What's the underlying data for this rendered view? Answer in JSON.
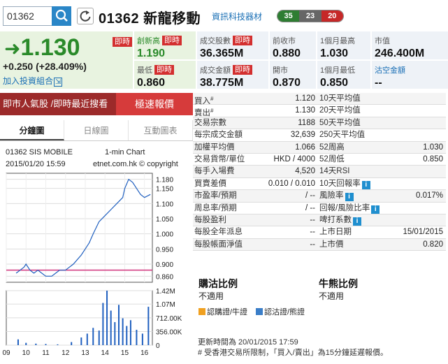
{
  "header": {
    "code_value": "01362",
    "title": "01362 新龍移動",
    "industry": "資訊科技器材",
    "counts": [
      "35",
      "23",
      "20"
    ]
  },
  "quote": {
    "price": "1.130",
    "change": "+0.250",
    "change_pct": "(+28.409%)",
    "high_tag": "即時",
    "portfolio_link": "加入投資組合",
    "cells": [
      {
        "label": "創新高",
        "tag": "即時",
        "value": "1.190"
      },
      {
        "label": "最低",
        "tag": "即時",
        "value": "0.860"
      },
      {
        "label": "成交股數",
        "tag": "即時",
        "value": "36.365M"
      },
      {
        "label": "成交金額",
        "tag": "即時",
        "value": "38.775M"
      },
      {
        "label": "前收市",
        "value": "0.880"
      },
      {
        "label": "開市",
        "value": "0.870"
      },
      {
        "label": "1個月最高",
        "value": "1.030"
      },
      {
        "label": "1個月最低",
        "value": "0.850"
      },
      {
        "label": "市值",
        "value": "246.400M"
      },
      {
        "label": "沽空金額",
        "value": "--"
      }
    ]
  },
  "left": {
    "market_bar": "即市人氣股 /即時最近搜看 ◀",
    "realtime_button": "極速報價",
    "tabs": [
      "分鐘圖",
      "日線圖",
      "互動圖表"
    ],
    "chart_title_left": "01362 SIS MOBILE",
    "chart_title_right": "1-min Chart",
    "chart_date": "2015/01/20 15:59",
    "chart_copyright": "etnet.com.hk © copyright"
  },
  "table": {
    "rows": [
      {
        "l1": "買入",
        "sup1": "#",
        "v1": "1.120",
        "l2": "10天平均值",
        "v2": ""
      },
      {
        "l1": "賣出",
        "sup1": "#",
        "v1": "1.130",
        "l2": "20天平均值",
        "v2": ""
      },
      {
        "l1": "交易宗數",
        "v1": "1188",
        "l2": "50天平均值",
        "v2": ""
      },
      {
        "l1": "每宗成交金額",
        "v1": "32,639",
        "l2": "250天平均值",
        "v2": ""
      },
      {
        "l1": "加權平均價",
        "v1": "1.066",
        "l2": "52周高",
        "v2": "1.030"
      },
      {
        "l1": "交易貨幣/單位",
        "v1": "HKD / 4000",
        "l2": "52周低",
        "v2": "0.850"
      },
      {
        "l1": "每手入場費",
        "v1": "4,520",
        "l2": "14天RSI",
        "v2": ""
      },
      {
        "l1": "買賣差價",
        "v1": "0.010 / 0.010",
        "l2": "10天回報率",
        "info2": "i",
        "v2": ""
      },
      {
        "l1": "市盈率/預期",
        "v1": "/ --",
        "l2": "風險率",
        "info2": "i",
        "v2": "0.017%"
      },
      {
        "l1": "周息率/預期",
        "v1": "/ --",
        "l2": "回報/風險比率",
        "info2": "i",
        "v2": ""
      },
      {
        "l1": "每股盈利",
        "v1": "--",
        "l2": "啤打系數",
        "info2": "i",
        "v2": ""
      },
      {
        "l1": "每股全年派息",
        "v1": "--",
        "l2": "上市日期",
        "v2": "15/01/2015"
      },
      {
        "l1": "每股帳面淨值",
        "v1": "--",
        "l2": "上市價",
        "v2": "0.820"
      }
    ]
  },
  "cbbc": {
    "warrant_title": "購沽比例",
    "warrant_value": "不適用",
    "cbbc_title": "牛熊比例",
    "cbbc_value": "不適用",
    "legend_call": "認購證/牛證",
    "legend_put": "認沽證/熊證",
    "color_call": "#f0a020",
    "color_put": "#3a7ec8"
  },
  "footer": {
    "update_time": "更新時間為 20/01/2015 17:59",
    "note": "# 受香港交易所限制，「買入/賣出」為15分鐘延遲報價。"
  },
  "chart_data": {
    "type": "line",
    "x_ticks": [
      "09",
      "10",
      "11",
      "12",
      "13",
      "14",
      "15",
      "16"
    ],
    "price_ticks": [
      "1.180",
      "1.150",
      "1.100",
      "1.050",
      "1.000",
      "0.950",
      "0.900",
      "0.860"
    ],
    "price_tick_values": [
      1.18,
      1.15,
      1.1,
      1.05,
      1.0,
      0.95,
      0.9,
      0.86
    ],
    "volume_ticks": [
      "1.42M",
      "1.07M",
      "712.00K",
      "356.00K",
      "0"
    ],
    "volume_tick_values": [
      1420000,
      1070000,
      712000,
      356000,
      0
    ],
    "ylim": [
      0.84,
      1.2
    ],
    "prev_close": 0.88,
    "price_series": [
      {
        "t": 9.5,
        "v": 0.87
      },
      {
        "t": 9.7,
        "v": 0.88
      },
      {
        "t": 9.9,
        "v": 0.89
      },
      {
        "t": 10.0,
        "v": 0.9
      },
      {
        "t": 10.2,
        "v": 0.88
      },
      {
        "t": 10.4,
        "v": 0.87
      },
      {
        "t": 10.6,
        "v": 0.88
      },
      {
        "t": 10.8,
        "v": 0.87
      },
      {
        "t": 11.0,
        "v": 0.86
      },
      {
        "t": 11.3,
        "v": 0.86
      },
      {
        "t": 11.5,
        "v": 0.87
      },
      {
        "t": 11.7,
        "v": 0.88
      },
      {
        "t": 12.0,
        "v": 0.88
      },
      {
        "t": 12.4,
        "v": 0.9
      },
      {
        "t": 12.8,
        "v": 0.93
      },
      {
        "t": 13.0,
        "v": 0.95
      },
      {
        "t": 13.2,
        "v": 0.97
      },
      {
        "t": 13.4,
        "v": 1.0
      },
      {
        "t": 13.7,
        "v": 1.04
      },
      {
        "t": 14.0,
        "v": 1.06
      },
      {
        "t": 14.3,
        "v": 1.08
      },
      {
        "t": 14.6,
        "v": 1.1
      },
      {
        "t": 14.9,
        "v": 1.12
      },
      {
        "t": 15.0,
        "v": 1.15
      },
      {
        "t": 15.2,
        "v": 1.18
      },
      {
        "t": 15.4,
        "v": 1.17
      },
      {
        "t": 15.6,
        "v": 1.15
      },
      {
        "t": 15.8,
        "v": 1.13
      },
      {
        "t": 16.0,
        "v": 1.12
      },
      {
        "t": 16.3,
        "v": 1.13
      }
    ],
    "volume_series": [
      {
        "t": 9.6,
        "v": 150000
      },
      {
        "t": 10.0,
        "v": 60000
      },
      {
        "t": 10.5,
        "v": 40000
      },
      {
        "t": 11.0,
        "v": 30000
      },
      {
        "t": 11.6,
        "v": 20000
      },
      {
        "t": 12.3,
        "v": 80000
      },
      {
        "t": 12.8,
        "v": 200000
      },
      {
        "t": 13.1,
        "v": 300000
      },
      {
        "t": 13.4,
        "v": 450000
      },
      {
        "t": 13.7,
        "v": 380000
      },
      {
        "t": 13.9,
        "v": 1100000
      },
      {
        "t": 14.1,
        "v": 1420000
      },
      {
        "t": 14.3,
        "v": 900000
      },
      {
        "t": 14.5,
        "v": 600000
      },
      {
        "t": 14.7,
        "v": 1050000
      },
      {
        "t": 14.9,
        "v": 700000
      },
      {
        "t": 15.1,
        "v": 500000
      },
      {
        "t": 15.3,
        "v": 650000
      },
      {
        "t": 15.6,
        "v": 400000
      },
      {
        "t": 15.9,
        "v": 300000
      },
      {
        "t": 16.2,
        "v": 1000000
      }
    ]
  }
}
